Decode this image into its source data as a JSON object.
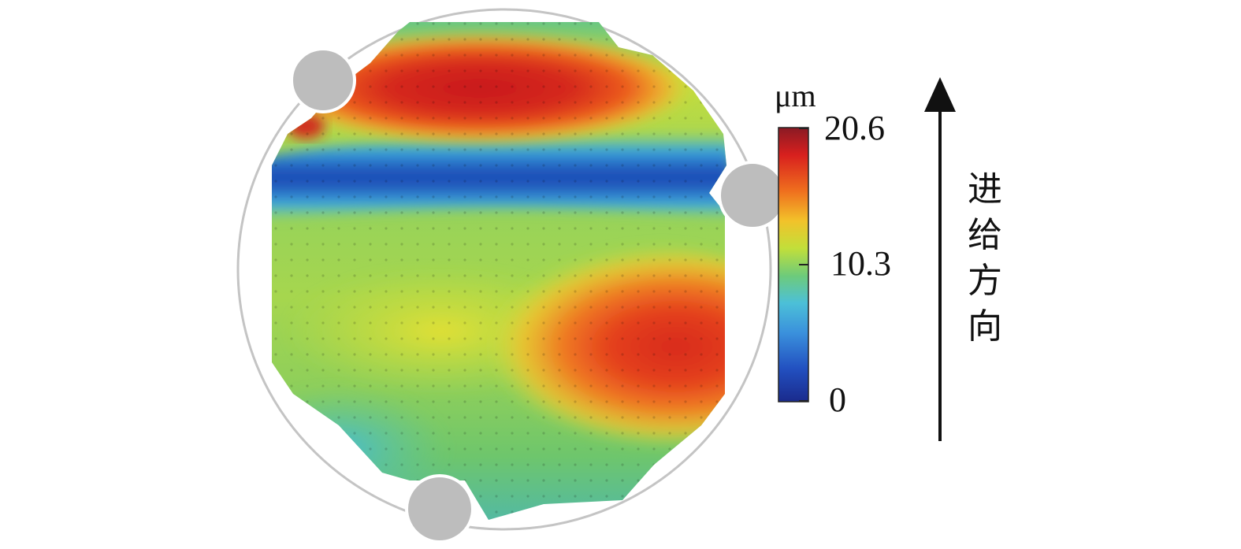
{
  "chart_data": {
    "type": "heatmap",
    "description_level": "surface-deviation contour map of circular workpiece",
    "colorbar": {
      "unit": "μm",
      "min": 0,
      "mid": 10.3,
      "max": 20.6,
      "ticks": [
        {
          "value": "20.6"
        },
        {
          "value": "10.3"
        },
        {
          "value": "0"
        }
      ],
      "colormap": [
        "#1a2a8c",
        "#2a5cc8",
        "#44aadd",
        "#6ecb7a",
        "#c2df3a",
        "#f2c22a",
        "#ef6e1e",
        "#d8201e",
        "#8a1a24"
      ]
    },
    "features": {
      "high_band_top": "red band near top (≈18–20.6 μm)",
      "low_band": "blue band below top (≈0–3 μm)",
      "high_region_right": "red region lower-right (≈17–19 μm)",
      "background": "green/yellow (≈9–12 μm)"
    },
    "annotation": {
      "direction_label": [
        "进",
        "给",
        "方",
        "向"
      ]
    }
  }
}
